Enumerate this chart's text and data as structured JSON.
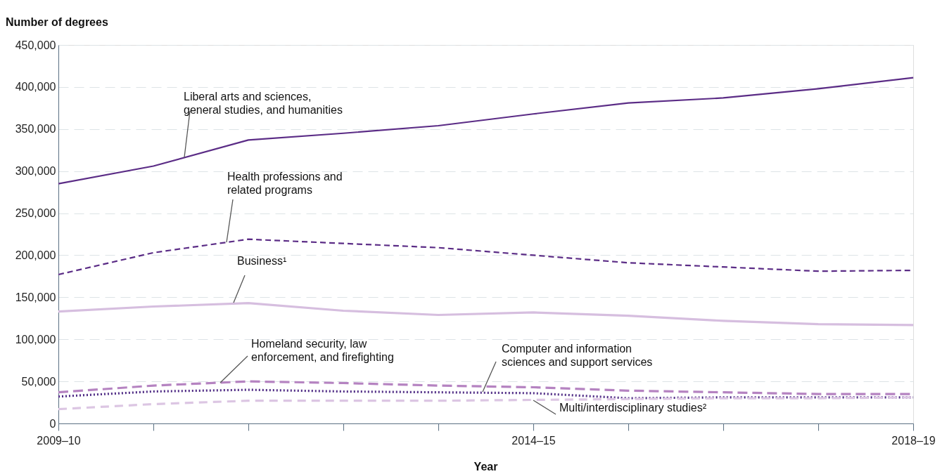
{
  "chart_data": {
    "type": "line",
    "ylabel": "Number of degrees",
    "xlabel": "Year",
    "categories": [
      "2009–10",
      null,
      null,
      null,
      null,
      "2014–15",
      null,
      null,
      null,
      "2018–19"
    ],
    "ylim": [
      0,
      450000
    ],
    "yticks": [
      0,
      {
        "value": 50000,
        "label": "50,000"
      },
      {
        "value": 100000,
        "label": "100,000"
      },
      {
        "value": 150000,
        "label": "150,000"
      },
      {
        "value": 200000,
        "label": "200,000"
      },
      {
        "value": 250000,
        "label": "250,000"
      },
      {
        "value": 300000,
        "label": "300,000"
      },
      {
        "value": 350000,
        "label": "350,000"
      },
      {
        "value": 400000,
        "label": "400,000"
      },
      {
        "value": 450000,
        "label": "450,000"
      }
    ],
    "grid": "y",
    "legend": false,
    "marker": "none",
    "series": [
      {
        "name": "Liberal arts and sciences,\ngeneral studies, and humanities",
        "color": "#5b2c86",
        "line_style": "solid",
        "values": [
          285000,
          306000,
          337000,
          345000,
          354000,
          368000,
          381000,
          387000,
          398000,
          411000
        ]
      },
      {
        "name": "Health professions and\nrelated programs",
        "color": "#5b2c86",
        "line_style": "dashed",
        "values": [
          177000,
          203000,
          219000,
          214000,
          209000,
          200000,
          191000,
          186000,
          181000,
          182000
        ]
      },
      {
        "name": "Business¹",
        "color": "#d6bedf",
        "line_style": "solid",
        "values": [
          133000,
          139000,
          143000,
          134000,
          129000,
          132000,
          128000,
          122000,
          118000,
          117000
        ]
      },
      {
        "name": "Homeland security, law\nenforcement, and firefighting",
        "color": "#b583c1",
        "line_style": "dashed",
        "values": [
          37000,
          45000,
          50000,
          48000,
          45000,
          43000,
          39000,
          37000,
          35000,
          35000
        ]
      },
      {
        "name": "Computer and information\nsciences and support services",
        "color": "#4e2a84",
        "line_style": "dotted",
        "values": [
          32000,
          38000,
          40000,
          38000,
          37000,
          36000,
          30000,
          31000,
          31000,
          31000
        ]
      },
      {
        "name": "Multi/interdisciplinary studies²",
        "color": "#dcc6e3",
        "line_style": "dashed",
        "values": [
          17000,
          23000,
          27000,
          27000,
          27000,
          28000,
          29000,
          30000,
          30000,
          31000
        ]
      }
    ]
  }
}
